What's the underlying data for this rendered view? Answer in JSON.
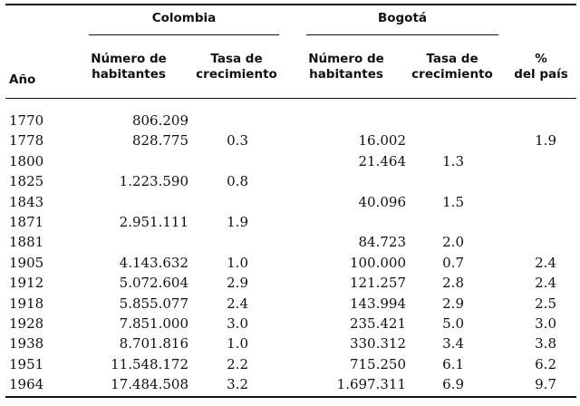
{
  "groups": {
    "colombia": "Colombia",
    "bogota": "Bogotá"
  },
  "headers": {
    "year": "Año",
    "col_pop": [
      "Número de",
      "habitantes"
    ],
    "col_rate": [
      "Tasa de",
      "crecimiento"
    ],
    "bog_pop": [
      "Número de",
      "habitantes"
    ],
    "bog_rate": [
      "Tasa de",
      "crecimiento"
    ],
    "pct": [
      "%",
      "del país"
    ]
  },
  "rows": [
    {
      "year": "1770",
      "col_pop": "806.209",
      "col_rate": "",
      "bog_pop": "",
      "bog_rate": "",
      "pct": ""
    },
    {
      "year": "1778",
      "col_pop": "828.775",
      "col_rate": "0.3",
      "bog_pop": "16.002",
      "bog_rate": "",
      "pct": "1.9"
    },
    {
      "year": "1800",
      "col_pop": "",
      "col_rate": "",
      "bog_pop": "21.464",
      "bog_rate": "1.3",
      "pct": ""
    },
    {
      "year": "1825",
      "col_pop": "1.223.590",
      "col_rate": "0.8",
      "bog_pop": "",
      "bog_rate": "",
      "pct": ""
    },
    {
      "year": "1843",
      "col_pop": "",
      "col_rate": "",
      "bog_pop": "40.096",
      "bog_rate": "1.5",
      "pct": ""
    },
    {
      "year": "1871",
      "col_pop": "2.951.111",
      "col_rate": "1.9",
      "bog_pop": "",
      "bog_rate": "",
      "pct": ""
    },
    {
      "year": "1881",
      "col_pop": "",
      "col_rate": "",
      "bog_pop": "84.723",
      "bog_rate": "2.0",
      "pct": ""
    },
    {
      "year": "1905",
      "col_pop": "4.143.632",
      "col_rate": "1.0",
      "bog_pop": "100.000",
      "bog_rate": "0.7",
      "pct": "2.4"
    },
    {
      "year": "1912",
      "col_pop": "5.072.604",
      "col_rate": "2.9",
      "bog_pop": "121.257",
      "bog_rate": "2.8",
      "pct": "2.4"
    },
    {
      "year": "1918",
      "col_pop": "5.855.077",
      "col_rate": "2.4",
      "bog_pop": "143.994",
      "bog_rate": "2.9",
      "pct": "2.5"
    },
    {
      "year": "1928",
      "col_pop": "7.851.000",
      "col_rate": "3.0",
      "bog_pop": "235.421",
      "bog_rate": "5.0",
      "pct": "3.0"
    },
    {
      "year": "1938",
      "col_pop": "8.701.816",
      "col_rate": "1.0",
      "bog_pop": "330.312",
      "bog_rate": "3.4",
      "pct": "3.8"
    },
    {
      "year": "1951",
      "col_pop": "11.548.172",
      "col_rate": "2.2",
      "bog_pop": "715.250",
      "bog_rate": "6.1",
      "pct": "6.2"
    },
    {
      "year": "1964",
      "col_pop": "17.484.508",
      "col_rate": "3.2",
      "bog_pop": "1.697.311",
      "bog_rate": "6.9",
      "pct": "9.7"
    }
  ]
}
